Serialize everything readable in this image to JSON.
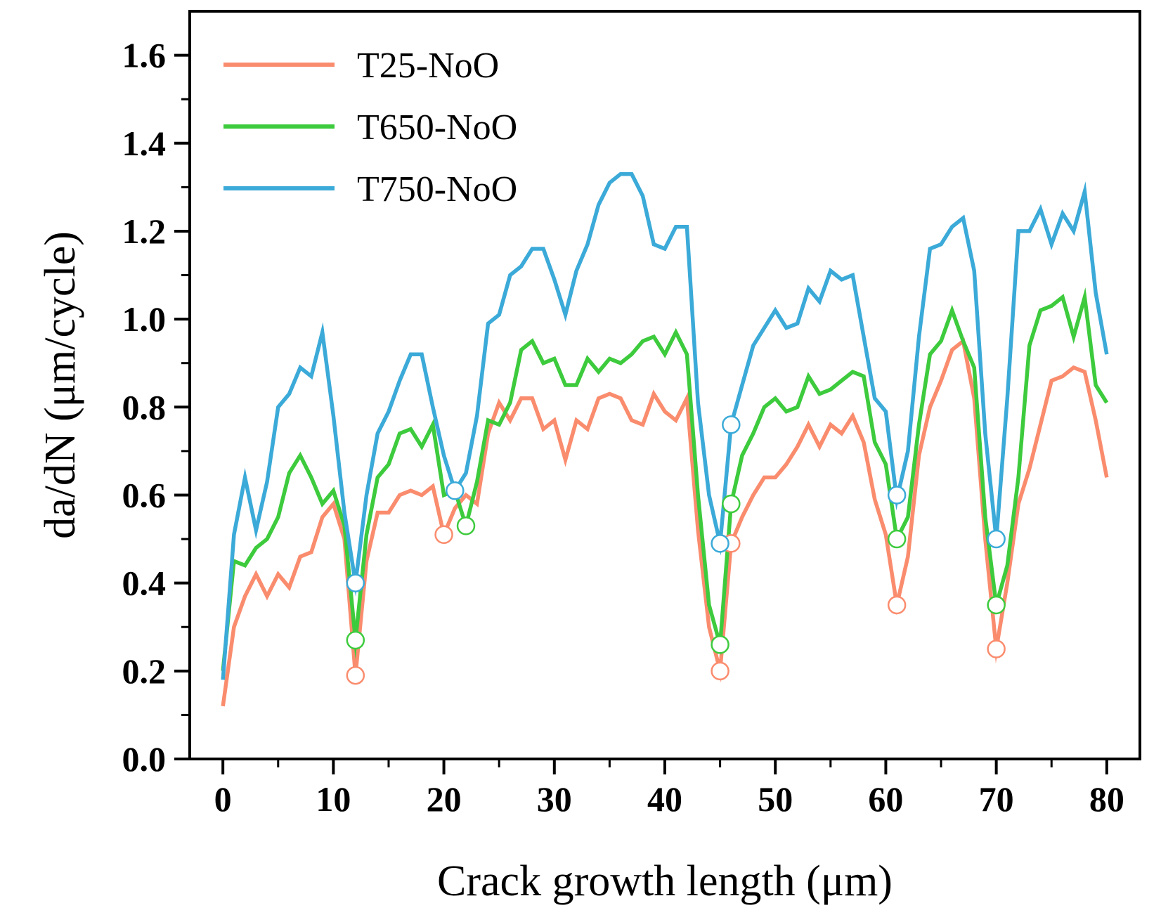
{
  "chart_data": {
    "type": "line",
    "xlabel": "Crack growth length (μm)",
    "ylabel": "da/dN (μm/cycle)",
    "xlim": [
      -3,
      83
    ],
    "ylim": [
      0,
      1.7
    ],
    "xticks": [
      "0",
      "10",
      "20",
      "30",
      "40",
      "50",
      "60",
      "70",
      "80"
    ],
    "yticks": [
      "0.0",
      "0.2",
      "0.4",
      "0.6",
      "0.8",
      "1.0",
      "1.2",
      "1.4",
      "1.6"
    ],
    "legend_position": "top-left",
    "series": [
      {
        "name": "T25-NoO",
        "color": "#FA8C6E",
        "x": [
          0,
          1,
          2,
          3,
          4,
          5,
          6,
          7,
          8,
          9,
          10,
          11,
          12,
          13,
          14,
          15,
          16,
          17,
          18,
          19,
          20,
          21,
          22,
          23,
          24,
          25,
          26,
          27,
          28,
          29,
          30,
          31,
          32,
          33,
          34,
          35,
          36,
          37,
          38,
          39,
          40,
          41,
          42,
          43,
          44,
          45,
          46,
          47,
          48,
          49,
          50,
          51,
          52,
          53,
          54,
          55,
          56,
          57,
          58,
          59,
          60,
          61,
          62,
          63,
          64,
          65,
          66,
          67,
          68,
          69,
          70,
          71,
          72,
          73,
          74,
          75,
          76,
          77,
          78,
          79,
          80
        ],
        "y": [
          0.12,
          0.3,
          0.37,
          0.42,
          0.37,
          0.42,
          0.39,
          0.46,
          0.47,
          0.55,
          0.58,
          0.5,
          0.19,
          0.45,
          0.56,
          0.56,
          0.6,
          0.61,
          0.6,
          0.62,
          0.51,
          0.57,
          0.6,
          0.58,
          0.74,
          0.81,
          0.77,
          0.82,
          0.82,
          0.75,
          0.77,
          0.68,
          0.77,
          0.75,
          0.82,
          0.83,
          0.82,
          0.77,
          0.76,
          0.83,
          0.79,
          0.77,
          0.82,
          0.52,
          0.3,
          0.2,
          0.49,
          0.55,
          0.6,
          0.64,
          0.64,
          0.67,
          0.71,
          0.76,
          0.71,
          0.76,
          0.74,
          0.78,
          0.72,
          0.59,
          0.51,
          0.35,
          0.46,
          0.69,
          0.8,
          0.86,
          0.93,
          0.95,
          0.82,
          0.5,
          0.25,
          0.4,
          0.58,
          0.66,
          0.76,
          0.86,
          0.87,
          0.89,
          0.88,
          0.77,
          0.64
        ],
        "markers": [
          [
            12,
            0.19
          ],
          [
            20,
            0.51
          ],
          [
            45,
            0.2
          ],
          [
            46,
            0.49
          ],
          [
            61,
            0.35
          ],
          [
            70,
            0.25
          ]
        ]
      },
      {
        "name": "T650-NoO",
        "color": "#3DCB3D",
        "x": [
          0,
          1,
          2,
          3,
          4,
          5,
          6,
          7,
          8,
          9,
          10,
          11,
          12,
          13,
          14,
          15,
          16,
          17,
          18,
          19,
          20,
          21,
          22,
          23,
          24,
          25,
          26,
          27,
          28,
          29,
          30,
          31,
          32,
          33,
          34,
          35,
          36,
          37,
          38,
          39,
          40,
          41,
          42,
          43,
          44,
          45,
          46,
          47,
          48,
          49,
          50,
          51,
          52,
          53,
          54,
          55,
          56,
          57,
          58,
          59,
          60,
          61,
          62,
          63,
          64,
          65,
          66,
          67,
          68,
          69,
          70,
          71,
          72,
          73,
          74,
          75,
          76,
          77,
          78,
          79,
          80
        ],
        "y": [
          0.2,
          0.45,
          0.44,
          0.48,
          0.5,
          0.55,
          0.65,
          0.69,
          0.64,
          0.58,
          0.61,
          0.53,
          0.27,
          0.51,
          0.64,
          0.67,
          0.74,
          0.75,
          0.71,
          0.76,
          0.6,
          0.61,
          0.53,
          0.63,
          0.77,
          0.76,
          0.81,
          0.93,
          0.95,
          0.9,
          0.91,
          0.85,
          0.85,
          0.91,
          0.88,
          0.91,
          0.9,
          0.92,
          0.95,
          0.96,
          0.92,
          0.97,
          0.92,
          0.6,
          0.35,
          0.26,
          0.58,
          0.69,
          0.74,
          0.8,
          0.82,
          0.79,
          0.8,
          0.87,
          0.83,
          0.84,
          0.86,
          0.88,
          0.87,
          0.72,
          0.67,
          0.5,
          0.55,
          0.76,
          0.92,
          0.95,
          1.02,
          0.95,
          0.89,
          0.55,
          0.35,
          0.44,
          0.64,
          0.94,
          1.02,
          1.03,
          1.05,
          0.96,
          1.05,
          0.85,
          0.81
        ],
        "markers": [
          [
            12,
            0.27
          ],
          [
            22,
            0.53
          ],
          [
            45,
            0.26
          ],
          [
            46,
            0.58
          ],
          [
            61,
            0.5
          ],
          [
            70,
            0.35
          ]
        ]
      },
      {
        "name": "T750-NoO",
        "color": "#3BAAD8",
        "x": [
          0,
          1,
          2,
          3,
          4,
          5,
          6,
          7,
          8,
          9,
          10,
          11,
          12,
          13,
          14,
          15,
          16,
          17,
          18,
          19,
          20,
          21,
          22,
          23,
          24,
          25,
          26,
          27,
          28,
          29,
          30,
          31,
          32,
          33,
          34,
          35,
          36,
          37,
          38,
          39,
          40,
          41,
          42,
          43,
          44,
          45,
          46,
          47,
          48,
          49,
          50,
          51,
          52,
          53,
          54,
          55,
          56,
          57,
          58,
          59,
          60,
          61,
          62,
          63,
          64,
          65,
          66,
          67,
          68,
          69,
          70,
          71,
          72,
          73,
          74,
          75,
          76,
          77,
          78,
          79,
          80
        ],
        "y": [
          0.18,
          0.51,
          0.64,
          0.52,
          0.63,
          0.8,
          0.83,
          0.89,
          0.87,
          0.97,
          0.78,
          0.56,
          0.4,
          0.6,
          0.74,
          0.79,
          0.86,
          0.92,
          0.92,
          0.8,
          0.69,
          0.61,
          0.65,
          0.78,
          0.99,
          1.01,
          1.1,
          1.12,
          1.16,
          1.16,
          1.09,
          1.01,
          1.11,
          1.17,
          1.26,
          1.31,
          1.33,
          1.33,
          1.28,
          1.17,
          1.16,
          1.21,
          1.21,
          0.81,
          0.6,
          0.49,
          0.76,
          0.85,
          0.94,
          0.98,
          1.02,
          0.98,
          0.99,
          1.07,
          1.04,
          1.11,
          1.09,
          1.1,
          0.96,
          0.82,
          0.79,
          0.59,
          0.7,
          0.96,
          1.16,
          1.17,
          1.21,
          1.23,
          1.11,
          0.74,
          0.5,
          0.82,
          1.2,
          1.2,
          1.25,
          1.17,
          1.24,
          1.2,
          1.29,
          1.06,
          0.92
        ],
        "markers": [
          [
            12,
            0.4
          ],
          [
            21,
            0.61
          ],
          [
            45,
            0.49
          ],
          [
            46,
            0.76
          ],
          [
            61,
            0.6
          ],
          [
            70,
            0.5
          ]
        ]
      }
    ]
  }
}
